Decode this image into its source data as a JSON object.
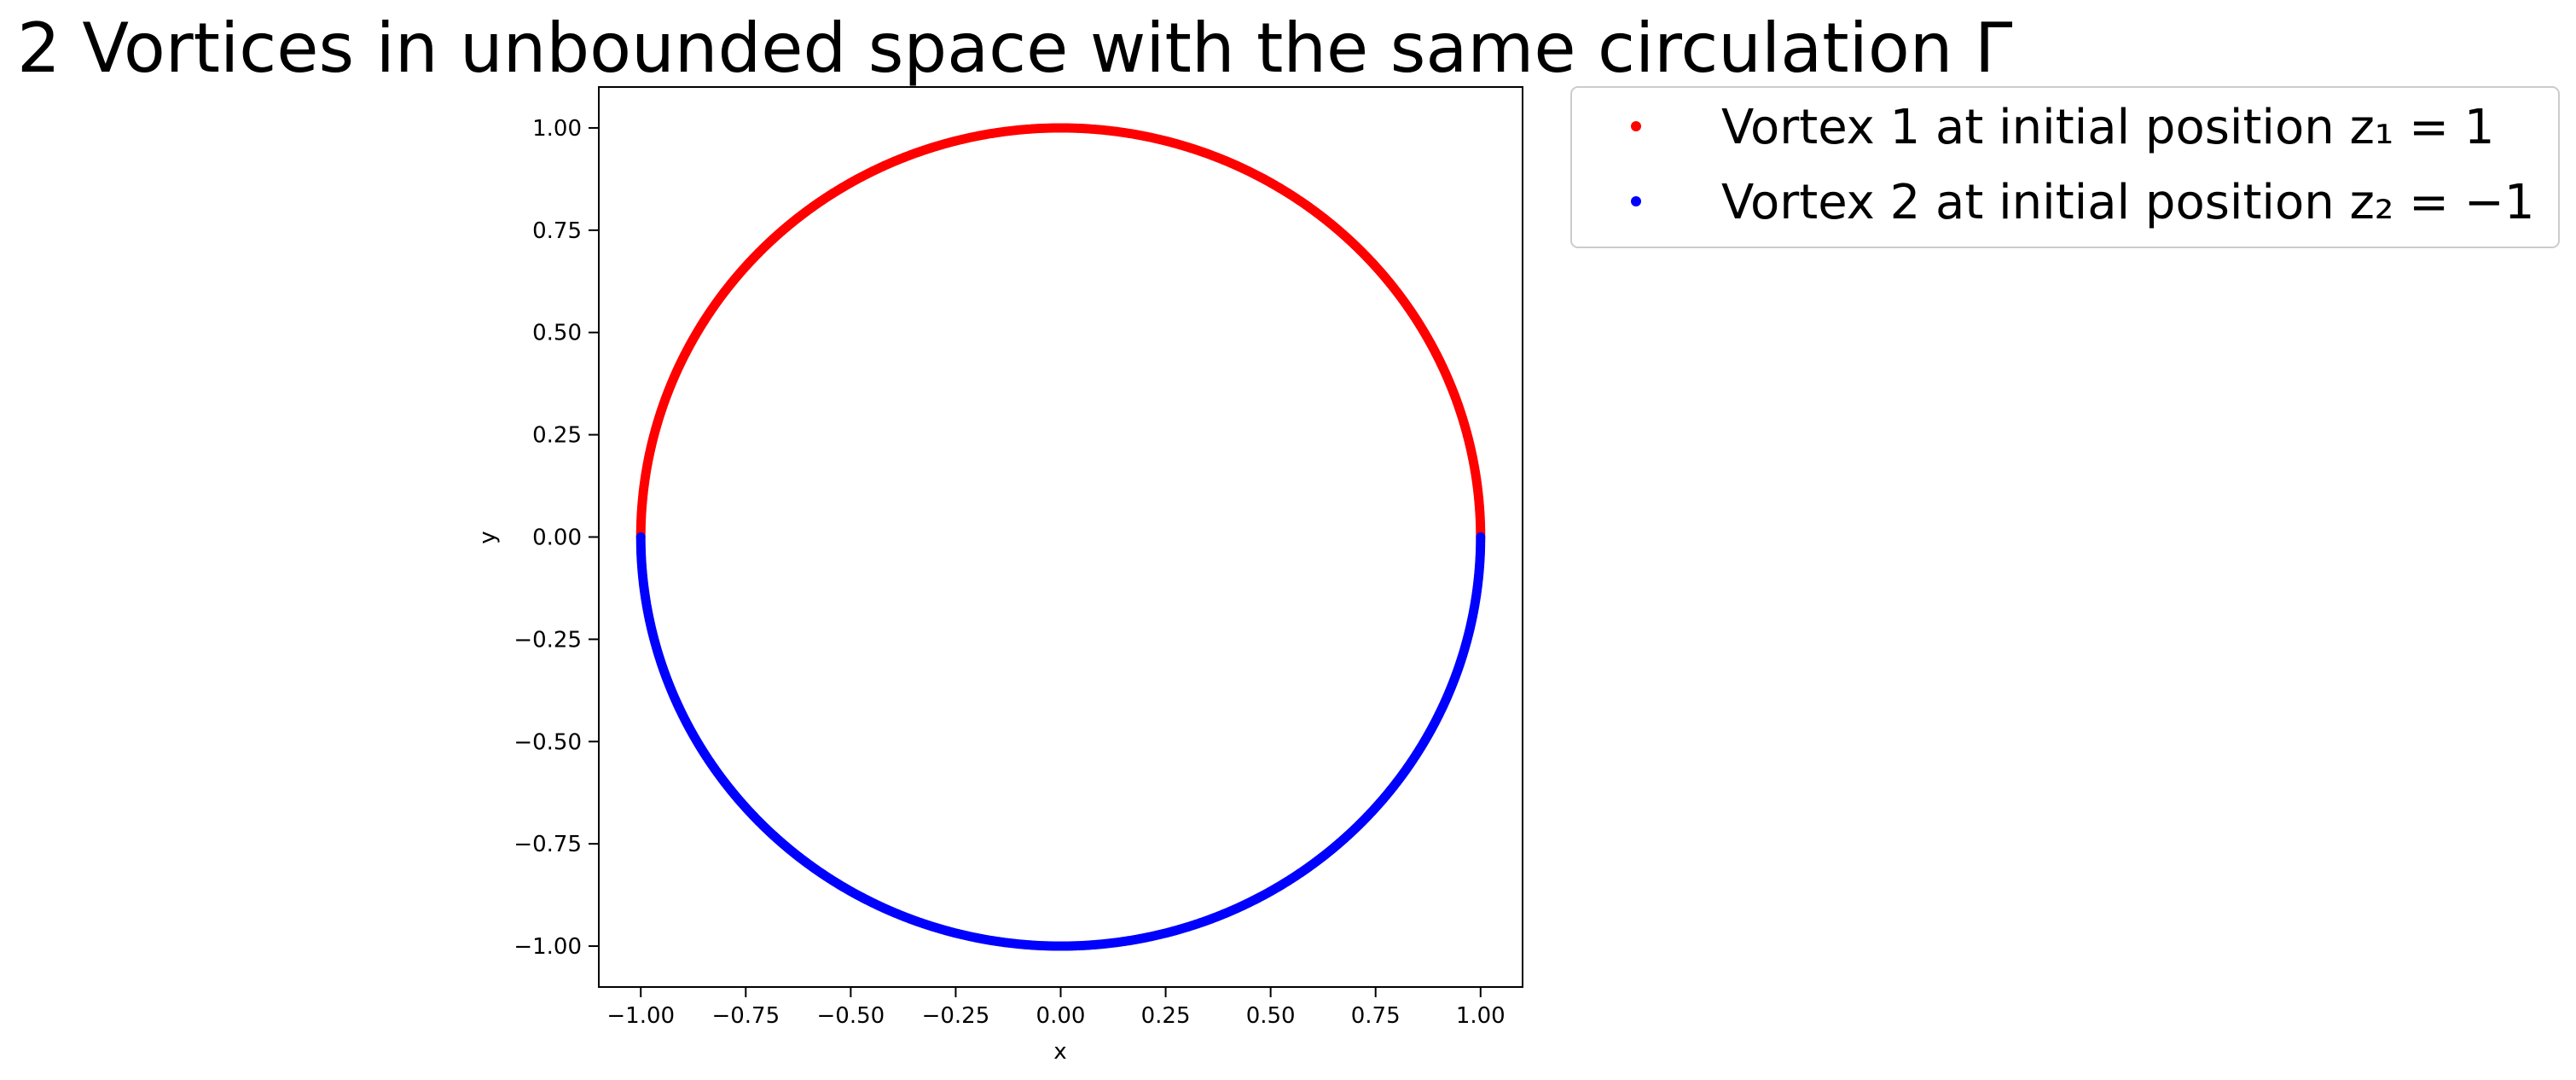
{
  "chart_data": {
    "type": "scatter",
    "title": "2 Vortices in unbounded space with the same circulation Γ",
    "xlabel": "x",
    "ylabel": "y",
    "xlim": [
      -1.1,
      1.1
    ],
    "ylim": [
      -1.1,
      1.1
    ],
    "xticks": [
      -1.0,
      -0.75,
      -0.5,
      -0.25,
      0.0,
      0.25,
      0.5,
      0.75,
      1.0
    ],
    "xtick_labels": [
      "−1.00",
      "−0.75",
      "−0.50",
      "−0.25",
      "0.00",
      "0.25",
      "0.50",
      "0.75",
      "1.00"
    ],
    "yticks": [
      1.0,
      0.75,
      0.5,
      0.25,
      0.0,
      -0.25,
      -0.5,
      -0.75,
      -1.0
    ],
    "ytick_labels": [
      "1.00",
      "0.75",
      "0.50",
      "0.25",
      "0.00",
      "−0.25",
      "−0.50",
      "−0.75",
      "−1.00"
    ],
    "grid": false,
    "legend_position": "outside-top-right",
    "series": [
      {
        "name": "Vortex 1 at initial position z₁ = 1",
        "color": "#ff0000",
        "trajectory": "unit circle, upper half",
        "angle_range_deg": [
          0,
          180
        ],
        "radius": 1.0
      },
      {
        "name": "Vortex 2 at initial position z₂ = −1",
        "color": "#0000ff",
        "trajectory": "unit circle, lower half",
        "angle_range_deg": [
          180,
          360
        ],
        "radius": 1.0
      }
    ]
  }
}
